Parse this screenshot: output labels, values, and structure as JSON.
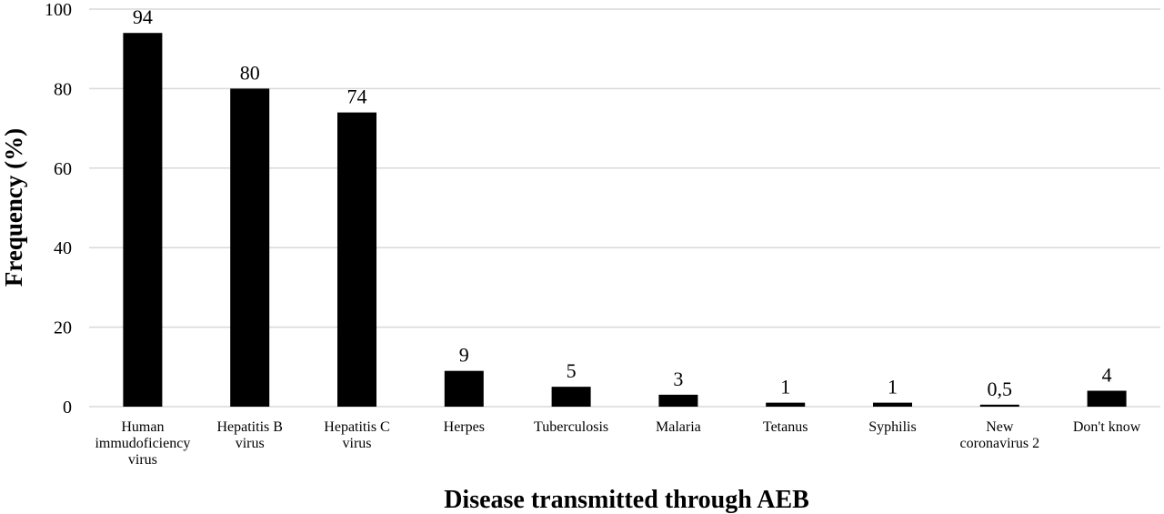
{
  "chart_data": {
    "type": "bar",
    "categories": [
      [
        "Human",
        "immudoficiency",
        "virus"
      ],
      [
        "Hepatitis B",
        "virus"
      ],
      [
        "Hepatitis C",
        "virus"
      ],
      [
        "Herpes"
      ],
      [
        "Tuberculosis"
      ],
      [
        "Malaria"
      ],
      [
        "Tetanus"
      ],
      [
        "Syphilis"
      ],
      [
        "New",
        "coronavirus 2"
      ],
      [
        "Don't know"
      ]
    ],
    "values": [
      94,
      80,
      74,
      9,
      5,
      3,
      1,
      1,
      0.5,
      4
    ],
    "data_labels": [
      "94",
      "80",
      "74",
      "9",
      "5",
      "3",
      "1",
      "1",
      "0,5",
      "4"
    ],
    "xlabel": "Disease transmitted through AEB",
    "ylabel": "Frequency (%)",
    "ylim": [
      0,
      100
    ],
    "yticks": [
      0,
      20,
      40,
      60,
      80,
      100
    ],
    "grid": true,
    "bar_color": "#000000",
    "grid_color": "#d9d9d9"
  }
}
